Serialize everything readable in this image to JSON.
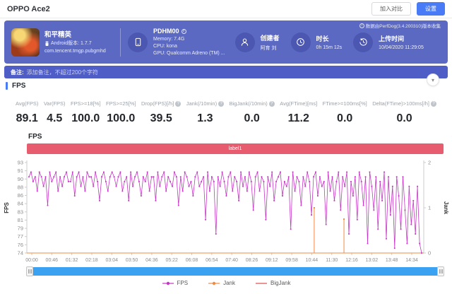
{
  "topbar": {
    "title": "OPPO Ace2",
    "compare_button": "加入对比",
    "settings_button": "设置"
  },
  "header": {
    "app": {
      "name": "和平精英",
      "version_line": "Android版本: 1.7.7",
      "package": "com.tencent.tmgp.pubgmhd"
    },
    "device": {
      "model": "PDHM00",
      "memory": "Memory: 7.4G",
      "cpu": "CPU: kona",
      "gpu": "GPU: Qualcomm Adreno (TM) ..."
    },
    "creator": {
      "label": "创建者",
      "name": "阿育 刘"
    },
    "duration": {
      "label": "时长",
      "value": "0h 15m 12s"
    },
    "upload": {
      "label": "上传时间",
      "value": "10/04/2020 11:29:05"
    },
    "collector_note": "数据由PerfDog(3.4.200310)版本收集"
  },
  "remark": {
    "label": "备注:",
    "placeholder": "添加备注，不超过200个字符"
  },
  "section": {
    "title": "FPS"
  },
  "stats": [
    {
      "label": "Avg(FPS)",
      "value": "89.1",
      "info": false
    },
    {
      "label": "Var(FPS)",
      "value": "4.5",
      "info": false
    },
    {
      "label": "FPS>=18[%]",
      "value": "100.0",
      "info": false
    },
    {
      "label": "FPS>=25[%]",
      "value": "100.0",
      "info": false
    },
    {
      "label": "Drop(FPS)[/h]",
      "value": "39.5",
      "info": true
    },
    {
      "label": "Jank(/10min)",
      "value": "1.3",
      "info": true
    },
    {
      "label": "BigJank(/10min)",
      "value": "0.0",
      "info": true
    },
    {
      "label": "Avg(FTime)[ms]",
      "value": "11.2",
      "info": false
    },
    {
      "label": "FTime>=100ms[%]",
      "value": "0.0",
      "info": false
    },
    {
      "label": "Delta(FTime)>100ms[/h]",
      "value": "0.0",
      "info": true
    }
  ],
  "icons": {
    "info": "i",
    "question": "?",
    "chevron_down": "▾"
  },
  "colors": {
    "accent_blue": "#4a7bf7",
    "header_band": "#5b69c2",
    "remark_bar": "#4f5dc7",
    "banner_red": "#e85c6f",
    "scrollbar_blue": "#3aa2f1",
    "fps_line": "#c636c6",
    "jank_line": "#ef8b43",
    "bigjank_line": "#e04b4b"
  },
  "chart_data": {
    "type": "line",
    "title": "FPS",
    "banner_label": "label1",
    "ylabel_left": "FPS",
    "ylabel_right": "Jank",
    "ylim_left": [
      74,
      93
    ],
    "ylim_right": [
      0,
      2
    ],
    "y_ticks_left": [
      93,
      91,
      90,
      88,
      86,
      84,
      83,
      81,
      79,
      77,
      76,
      74
    ],
    "y_ticks_right": [
      2,
      1,
      0
    ],
    "x_ticks": [
      "00:00",
      "00:46",
      "01:32",
      "02:18",
      "03:04",
      "03:50",
      "04:36",
      "05:22",
      "06:08",
      "06:54",
      "07:40",
      "08:26",
      "09:12",
      "09:58",
      "10:44",
      "11:30",
      "12:16",
      "13:02",
      "13:48",
      "14:34"
    ],
    "legend": [
      "FPS",
      "Jank",
      "BigJank"
    ],
    "series": [
      {
        "name": "FPS",
        "color": "#c636c6",
        "values": [
          90,
          91,
          89,
          90,
          87,
          91,
          90,
          88,
          90,
          84,
          91,
          89,
          90,
          91,
          87,
          90,
          88,
          90,
          91,
          89,
          89,
          91,
          86,
          90,
          91,
          88,
          90,
          87,
          91,
          90,
          90,
          88,
          91,
          89,
          85,
          90,
          91,
          89,
          87,
          90,
          91,
          90,
          88,
          90,
          91,
          87,
          89,
          90,
          85,
          91,
          88,
          90,
          91,
          89,
          86,
          90,
          89,
          91,
          87,
          90,
          90,
          85,
          91,
          88,
          90,
          91,
          87,
          90,
          89,
          88,
          91,
          90,
          84,
          90,
          87,
          91,
          90,
          88,
          89,
          86,
          90,
          91,
          88,
          89,
          90,
          81,
          91,
          87,
          90,
          89,
          78,
          90,
          88,
          91,
          89,
          86,
          90,
          91,
          87,
          90,
          89,
          85,
          91,
          88,
          90,
          87,
          91,
          89,
          83,
          90,
          91,
          87,
          90,
          89,
          81,
          90,
          88,
          91,
          85,
          89,
          90,
          91,
          86,
          89,
          88,
          90,
          79,
          91,
          87,
          90,
          89,
          84,
          90,
          88,
          91,
          89,
          82,
          90,
          91,
          86,
          90,
          88,
          89,
          80,
          91,
          87,
          90,
          85,
          89,
          91,
          83,
          90,
          88,
          91,
          78,
          89,
          86,
          90,
          81,
          91,
          89,
          84,
          90,
          76,
          91,
          88,
          83,
          90,
          79,
          89,
          85,
          91,
          77,
          90,
          82,
          88,
          75,
          90,
          86,
          79,
          90,
          83,
          76,
          88,
          80,
          85,
          78,
          88,
          76,
          74
        ]
      },
      {
        "name": "Jank",
        "color": "#ef8b43",
        "baseline": 0,
        "events": [
          {
            "x_fraction": 0.724,
            "value": 1.0
          },
          {
            "x_fraction": 0.799,
            "value": 0.75
          }
        ]
      },
      {
        "name": "BigJank",
        "color": "#e04b4b",
        "events": []
      }
    ]
  }
}
